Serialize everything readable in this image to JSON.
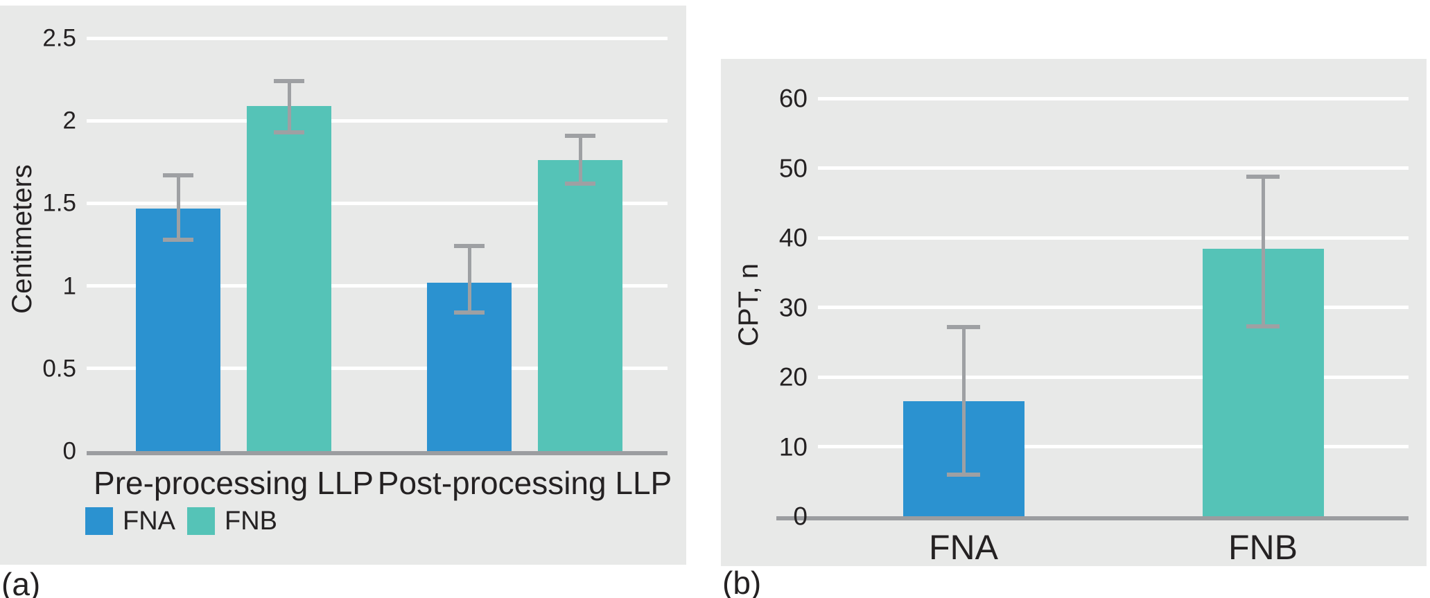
{
  "figure": {
    "panel_a_label": "(a)",
    "panel_b_label": "(b)"
  },
  "colors": {
    "fna_blue": "#2B92D0",
    "fnb_teal": "#55C3B7",
    "panel_background": "#E8E9E8",
    "gridline_white": "#FFFFFF",
    "axis_gray": "#9B9DA0",
    "error_bar_gray": "#9EA0A3",
    "text_dark": "#242122"
  },
  "chart_data": [
    {
      "id": "a",
      "type": "bar",
      "title": "",
      "xlabel": "",
      "ylabel": "Centimeters",
      "categories": [
        "Pre-processing LLP",
        "Post-processing LLP"
      ],
      "series": [
        {
          "name": "FNA",
          "color_key": "fna_blue",
          "values": [
            1.47,
            1.02
          ],
          "error_low": [
            1.28,
            0.84
          ],
          "error_high": [
            1.67,
            1.24
          ]
        },
        {
          "name": "FNB",
          "color_key": "fnb_teal",
          "values": [
            2.09,
            1.76
          ],
          "error_low": [
            1.93,
            1.62
          ],
          "error_high": [
            2.24,
            1.91
          ]
        }
      ],
      "yticks": [
        0,
        0.5,
        1,
        1.5,
        2,
        2.5
      ],
      "ytick_labels": [
        "0",
        "0.5",
        "1",
        "1.5",
        "2",
        "2.5"
      ],
      "ylim": [
        0,
        2.7
      ],
      "grid": true,
      "legend": {
        "entries": [
          "FNA",
          "FNB"
        ],
        "position": "bottom-left"
      }
    },
    {
      "id": "b",
      "type": "bar",
      "title": "",
      "xlabel": "",
      "ylabel": "CPT, n",
      "categories": [
        "FNA",
        "FNB"
      ],
      "series": [
        {
          "color_keys": [
            "fna_blue",
            "fnb_teal"
          ],
          "values": [
            16.5,
            38.4
          ],
          "error_low": [
            6,
            27.3
          ],
          "error_high": [
            27.2,
            48.8
          ]
        }
      ],
      "yticks": [
        0,
        10,
        20,
        30,
        40,
        50,
        60
      ],
      "ytick_labels": [
        "0",
        "10",
        "20",
        "30",
        "40",
        "50",
        "60"
      ],
      "ylim": [
        0,
        65
      ],
      "grid": true,
      "legend": null
    }
  ]
}
